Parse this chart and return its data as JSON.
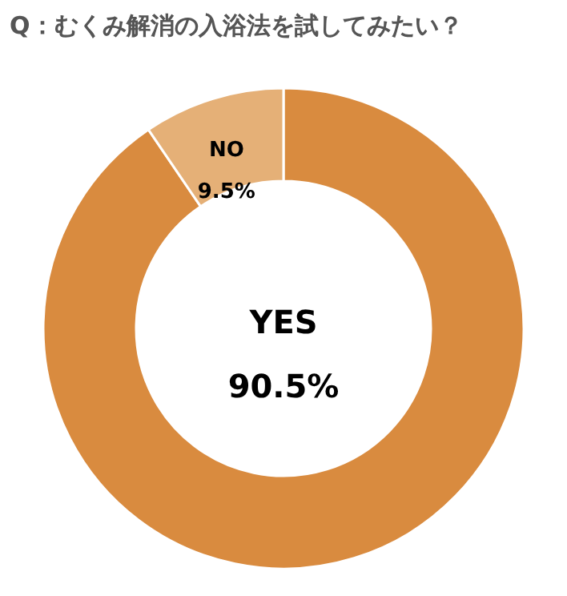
{
  "chart_data": {
    "type": "donut",
    "title": "Q：むくみ解消の入浴法を試してみたい？",
    "categories": [
      "YES",
      "NO"
    ],
    "values": [
      90.5,
      9.5
    ],
    "colors": [
      "#d98b3f",
      "#e5b077"
    ],
    "value_labels": [
      "90.5%",
      "9.5%"
    ]
  }
}
